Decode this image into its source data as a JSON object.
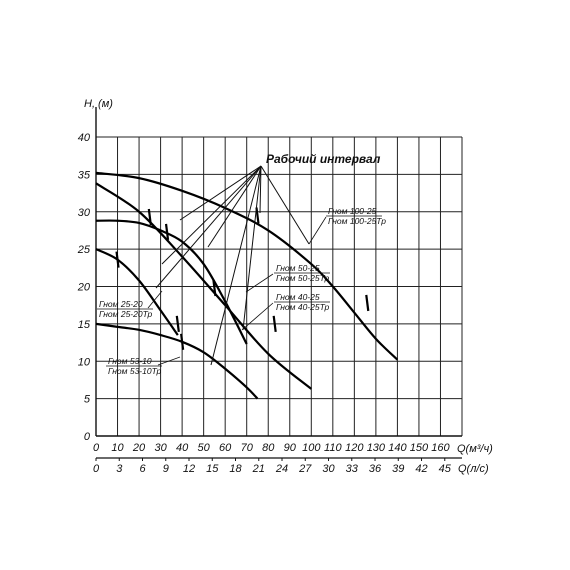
{
  "chart_data": {
    "type": "line",
    "ylabel": "H, (м)",
    "xlabel": "Q(м³/ч)",
    "xlabel2": "Q(л/с)",
    "xlim": [
      0,
      170
    ],
    "ylim": [
      0,
      40
    ],
    "x_ticks": [
      "0",
      "10",
      "20",
      "30",
      "40",
      "50",
      "60",
      "70",
      "80",
      "90",
      "100",
      "110",
      "120",
      "130",
      "140",
      "150",
      "160"
    ],
    "x2_ticks": [
      "0",
      "3",
      "6",
      "9",
      "12",
      "15",
      "18",
      "21",
      "24",
      "27",
      "30",
      "33",
      "36",
      "39",
      "42",
      "45"
    ],
    "y_ticks": [
      "0",
      "5",
      "10",
      "15",
      "20",
      "25",
      "30",
      "35",
      "40"
    ],
    "grid": true,
    "annotation": "Рабочий интервал",
    "series": [
      {
        "name": "Гном 100-25",
        "name2": "Гном 100-25Тр",
        "x": [
          0,
          20,
          40,
          60,
          80,
          100,
          110,
          120,
          130,
          140
        ],
        "y": [
          35.2,
          34.5,
          32.8,
          30.5,
          27.5,
          23.0,
          20.0,
          16.5,
          13.0,
          10.2
        ],
        "markers": [
          {
            "x": 75,
            "y": 29.5
          },
          {
            "x": 126,
            "y": 17.8
          }
        ]
      },
      {
        "name": "Гном 50-25",
        "name2": "Гном 50-25Тр",
        "x": [
          0,
          20,
          40,
          60,
          80,
          100
        ],
        "y": [
          33.8,
          30.0,
          24.0,
          17.5,
          11.0,
          6.3
        ],
        "markers": [
          {
            "x": 33,
            "y": 27.3
          },
          {
            "x": 83,
            "y": 15.0
          }
        ]
      },
      {
        "name": "Гном 40-25",
        "name2": "Гном 40-25Тр",
        "x": [
          0,
          10,
          20,
          30,
          40,
          50,
          60,
          70
        ],
        "y": [
          28.8,
          28.8,
          28.5,
          27.5,
          26.0,
          23.0,
          18.0,
          12.3
        ],
        "markers": [
          {
            "x": 25,
            "y": 29.3
          },
          {
            "x": 55,
            "y": 19.8
          }
        ]
      },
      {
        "name": "Гном 25-20",
        "name2": "Гном 25-20Тр",
        "x": [
          0,
          10,
          20,
          30,
          38
        ],
        "y": [
          25.0,
          23.6,
          20.8,
          16.8,
          13.5
        ],
        "markers": [
          {
            "x": 10,
            "y": 23.6
          },
          {
            "x": 38,
            "y": 15.0
          }
        ]
      },
      {
        "name": "Гном 53-10",
        "name2": "Гном 53-10Тр",
        "x": [
          0,
          10,
          20,
          30,
          40,
          50,
          60,
          70,
          75
        ],
        "y": [
          15.0,
          14.6,
          14.2,
          13.5,
          12.6,
          11.2,
          9.0,
          6.5,
          5.0
        ],
        "markers": [
          {
            "x": 40,
            "y": 12.6
          }
        ]
      }
    ],
    "label_positions": {}
  }
}
